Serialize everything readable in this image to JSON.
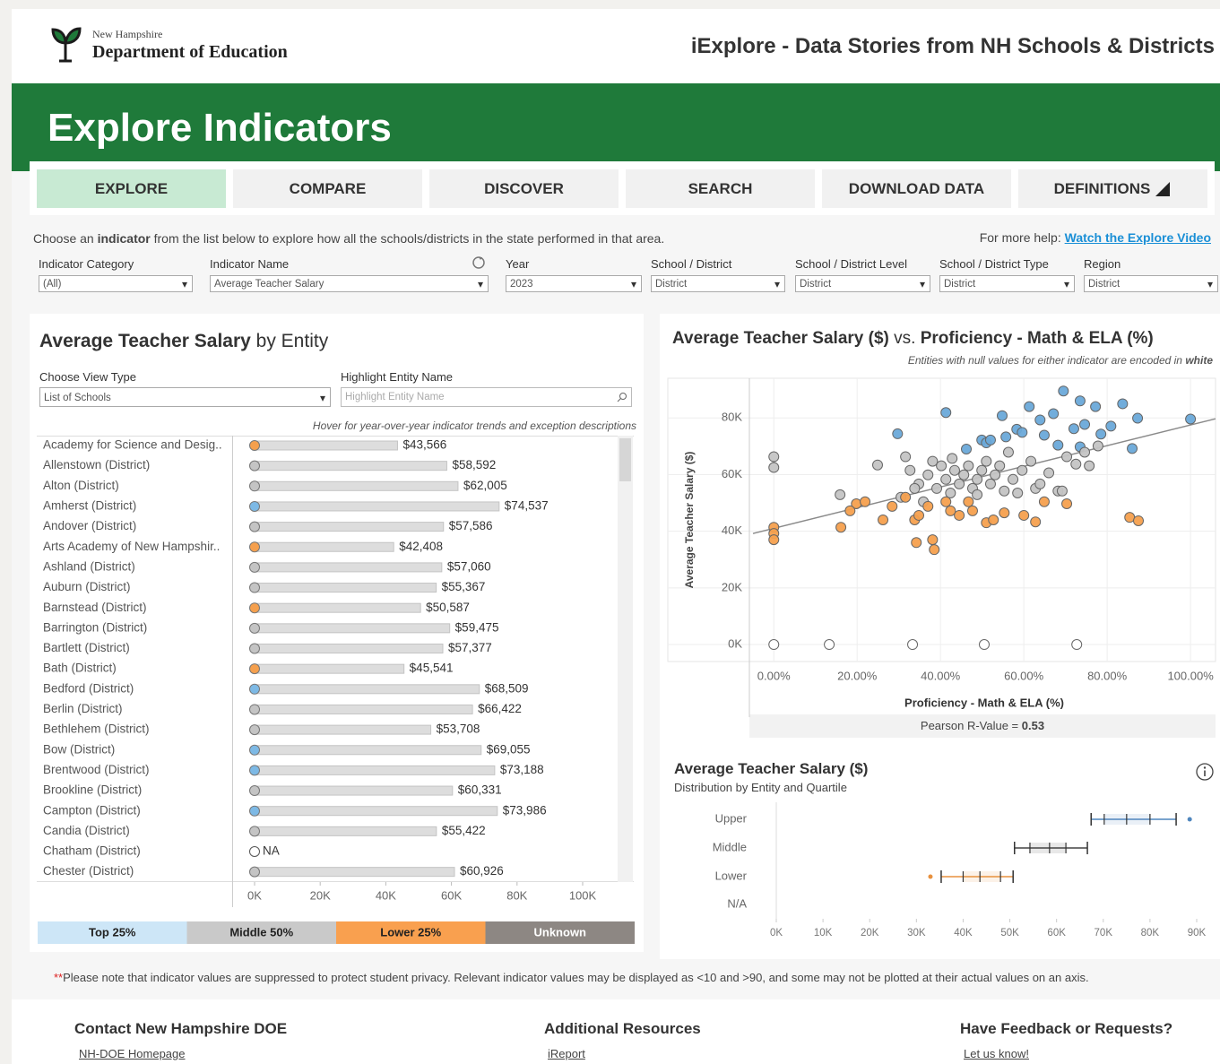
{
  "header": {
    "agency_small": "New Hampshire",
    "agency": "Department of Education",
    "app_title": "iExplore - Data Stories from NH Schools & Districts"
  },
  "banner": "Explore Indicators",
  "nav": [
    "EXPLORE",
    "COMPARE",
    "DISCOVER",
    "SEARCH",
    "DOWNLOAD DATA",
    "DEFINITIONS"
  ],
  "intro": {
    "before": "Choose an",
    "bold": "indicator",
    "after": "from the list below to explore how all the schools/districts in the state performed in that area.",
    "help": "For more help:",
    "link": "Watch the Explore Video"
  },
  "filters": [
    {
      "label": "Indicator Category",
      "value": "(All)"
    },
    {
      "label": "Indicator Name",
      "value": "Average Teacher Salary"
    },
    {
      "label": "Year",
      "value": "2023"
    },
    {
      "label": "School / District",
      "value": "District"
    },
    {
      "label": "School / District Level",
      "value": "District"
    },
    {
      "label": "School / District Type",
      "value": "District"
    },
    {
      "label": "Region",
      "value": "District"
    }
  ],
  "chart_data": [
    {
      "type": "bar",
      "orientation": "horizontal",
      "title": "Average Teacher Salary",
      "title_suffix": "by Entity",
      "view_type_label": "Choose View Type",
      "view_type": "List of Schools",
      "highlight_label": "Highlight Entity Name",
      "highlight_placeholder": "Highlight Entity Name",
      "hint": "Hover for year-over-year indicator trends and exception descriptions",
      "categories": [
        "Academy for Science and Desig..",
        "Allenstown (District)",
        "Alton (District)",
        "Amherst (District)",
        "Andover (District)",
        "Arts Academy of New Hampshir..",
        "Ashland (District)",
        "Auburn (District)",
        "Barnstead (District)",
        "Barrington (District)",
        "Bartlett (District)",
        "Bath (District)",
        "Bedford (District)",
        "Berlin (District)",
        "Bethlehem (District)",
        "Bow (District)",
        "Brentwood (District)",
        "Brookline (District)",
        "Campton (District)",
        "Candia (District)",
        "Chatham (District)",
        "Chester (District)"
      ],
      "values": [
        43566,
        58592,
        62005,
        74537,
        57586,
        42408,
        57060,
        55367,
        50587,
        59475,
        57377,
        45541,
        68509,
        66422,
        53708,
        69055,
        73188,
        60331,
        73986,
        55422,
        null,
        60926
      ],
      "value_labels": [
        "$43,566",
        "$58,592",
        "$62,005",
        "$74,537",
        "$57,586",
        "$42,408",
        "$57,060",
        "$55,367",
        "$50,587",
        "$59,475",
        "$57,377",
        "$45,541",
        "$68,509",
        "$66,422",
        "$53,708",
        "$69,055",
        "$73,188",
        "$60,331",
        "$73,986",
        "$55,422",
        "NA",
        "$60,926"
      ],
      "colors": [
        "#f5a04e",
        "#c4c4c4",
        "#c4c4c4",
        "#7db9e5",
        "#c4c4c4",
        "#f5a04e",
        "#c4c4c4",
        "#c4c4c4",
        "#f5a04e",
        "#c4c4c4",
        "#c4c4c4",
        "#f5a04e",
        "#7db9e5",
        "#c4c4c4",
        "#c4c4c4",
        "#7db9e5",
        "#7db9e5",
        "#c4c4c4",
        "#7db9e5",
        "#c4c4c4",
        "#ffffff",
        "#c4c4c4"
      ],
      "bar_color": "#dddddd",
      "xlim": [
        0,
        100000
      ],
      "xticks": [
        {
          "value": 0,
          "label": "0K"
        },
        {
          "value": 20000,
          "label": "20K"
        },
        {
          "value": 40000,
          "label": "40K"
        },
        {
          "value": 60000,
          "label": "60K"
        },
        {
          "value": 80000,
          "label": "80K"
        },
        {
          "value": 100000,
          "label": "100K"
        }
      ],
      "legend": [
        {
          "name": "Top 25%",
          "color": "#cde6f7"
        },
        {
          "name": "Middle 50%",
          "color": "#c9c9c9"
        },
        {
          "name": "Lower 25%",
          "color": "#f9a04f"
        },
        {
          "name": "Unknown",
          "color": "#8d8783"
        }
      ]
    },
    {
      "type": "scatter",
      "title": "Average Teacher Salary ($)",
      "title_joiner": "vs.",
      "title_right": "Proficiency - Math & ELA (%)",
      "subtitle": "Entities with null values for either indicator are encoded in",
      "subtitle_emphasis": "white",
      "xlabel": "Proficiency - Math & ELA (%)",
      "ylabel": "Average Teacher Salary ($)",
      "xlim": [
        -5,
        106
      ],
      "ylim": [
        -6000,
        94000
      ],
      "xticks": [
        {
          "value": 0,
          "label": "0.00%"
        },
        {
          "value": 20,
          "label": "20.00%"
        },
        {
          "value": 40,
          "label": "40.00%"
        },
        {
          "value": 60,
          "label": "60.00%"
        },
        {
          "value": 80,
          "label": "80.00%"
        },
        {
          "value": 100,
          "label": "100.00%"
        }
      ],
      "yticks": [
        {
          "value": 0,
          "label": "0K"
        },
        {
          "value": 20000,
          "label": "20K"
        },
        {
          "value": 40000,
          "label": "40K"
        },
        {
          "value": 60000,
          "label": "60K"
        },
        {
          "value": 80000,
          "label": "80K"
        }
      ],
      "grid": true,
      "series": [
        {
          "name": "Top 25%",
          "color": "#6aa9d9",
          "x": [
            41.3,
            29.7,
            46.2,
            49.9,
            51.0,
            52.0,
            54.8,
            58.3,
            61.3,
            63.9,
            67.1,
            69.5,
            73.5,
            77.2,
            83.7,
            87.3,
            80.9,
            100,
            74.6,
            72.0,
            78.5,
            86.0,
            59.6,
            55.7,
            64.9,
            68.2,
            73.5
          ],
          "y": [
            81900,
            74400,
            69000,
            72200,
            71200,
            72200,
            80800,
            76000,
            84000,
            79300,
            81500,
            89500,
            86000,
            84000,
            85000,
            79900,
            77100,
            79600,
            77700,
            76200,
            74300,
            69200,
            74900,
            73300,
            73900,
            70400,
            69800
          ]
        },
        {
          "name": "Middle 50%",
          "color": "#c4c4c4",
          "x": [
            0,
            0,
            15.9,
            24.9,
            31.6,
            32.7,
            34.8,
            37.0,
            38.1,
            39.1,
            40.2,
            41.3,
            42.4,
            43.4,
            44.5,
            45.6,
            46.7,
            47.7,
            48.8,
            49.9,
            51.0,
            52.0,
            53.1,
            54.2,
            55.3,
            56.3,
            57.4,
            58.5,
            59.6,
            61.7,
            62.8,
            63.9,
            66.0,
            68.2,
            70.3,
            72.5,
            74.6,
            75.7,
            77.8,
            69.2,
            33.8,
            30.5,
            48.8,
            35.9,
            42.8
          ],
          "y": [
            66300,
            62500,
            52900,
            63400,
            66300,
            61500,
            56700,
            59900,
            64700,
            55100,
            63100,
            58300,
            53500,
            61500,
            56700,
            59900,
            63100,
            55100,
            58300,
            61500,
            64700,
            56700,
            59900,
            63100,
            54200,
            67900,
            58300,
            53500,
            61500,
            64700,
            55100,
            56700,
            60600,
            54200,
            66300,
            63700,
            67900,
            63100,
            70100,
            54200,
            55100,
            52000,
            52900,
            50400,
            65700
          ]
        },
        {
          "name": "Lower 25%",
          "color": "#f5a04e",
          "x": [
            0,
            0,
            0,
            16.1,
            19.8,
            21.9,
            26.2,
            28.4,
            33.8,
            34.8,
            34.2,
            38.1,
            38.5,
            37.0,
            41.3,
            42.4,
            44.5,
            46.7,
            47.7,
            51.0,
            52.7,
            55.3,
            60.0,
            62.8,
            64.9,
            70.3,
            85.4,
            87.5,
            18.3,
            31.6
          ],
          "y": [
            41400,
            39200,
            37000,
            41400,
            49700,
            50400,
            44000,
            48800,
            44000,
            45600,
            36000,
            37000,
            33500,
            48800,
            50400,
            47200,
            45600,
            50400,
            47200,
            43000,
            44000,
            46500,
            45600,
            43300,
            50400,
            49700,
            44900,
            43700,
            47200,
            52000
          ]
        },
        {
          "color": "#ffffff",
          "x": [
            0,
            13.3,
            33.3,
            50.5,
            72.7
          ],
          "y": [
            0,
            0,
            0,
            0,
            0
          ]
        }
      ],
      "trend_line": {
        "x": [
          -5,
          106
        ],
        "y": [
          39200,
          79700
        ],
        "color": "#8a8a8a"
      },
      "stat_label": "Pearson R-Value =",
      "stat_value": 0.53
    },
    {
      "type": "box",
      "title": "Average Teacher Salary ($)",
      "subtitle": "Distribution by Entity and Quartile",
      "categories": [
        "Upper",
        "Middle",
        "Lower",
        "N/A"
      ],
      "min": [
        67400,
        51000,
        35300,
        null
      ],
      "q1": [
        70200,
        54300,
        40000,
        null
      ],
      "median": [
        75000,
        58500,
        43600,
        null
      ],
      "q3": [
        80000,
        62000,
        48000,
        null
      ],
      "max": [
        85600,
        66600,
        50700,
        null
      ],
      "outliers": [
        [
          88500
        ],
        [],
        [
          33000
        ],
        []
      ],
      "colors": [
        "#4f86bd",
        "#444444",
        "#e8913e",
        "#cccccc"
      ],
      "xlim": [
        0,
        90000
      ],
      "xticks": [
        {
          "value": 0,
          "label": "0K"
        },
        {
          "value": 10000,
          "label": "10K"
        },
        {
          "value": 20000,
          "label": "20K"
        },
        {
          "value": 30000,
          "label": "30K"
        },
        {
          "value": 40000,
          "label": "40K"
        },
        {
          "value": 50000,
          "label": "50K"
        },
        {
          "value": 60000,
          "label": "60K"
        },
        {
          "value": 70000,
          "label": "70K"
        },
        {
          "value": 80000,
          "label": "80K"
        },
        {
          "value": 90000,
          "label": "90K"
        }
      ]
    }
  ],
  "note": {
    "mark": "**",
    "text": "Please note that indicator values are suppressed to protect student privacy. Relevant indicator values may be displayed as <10 and >90, and some may not be plotted at their actual values on an axis."
  },
  "footer": [
    {
      "heading": "Contact New Hampshire DOE",
      "link": "NH-DOE Homepage"
    },
    {
      "heading": "Additional Resources",
      "link": "iReport"
    },
    {
      "heading": "Have Feedback or Requests?",
      "link": "Let us know!"
    }
  ]
}
